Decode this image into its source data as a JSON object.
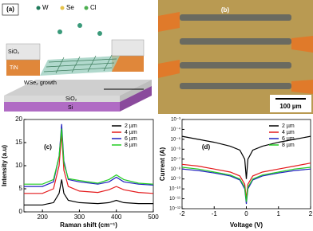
{
  "panels": [
    {
      "label": "(a)",
      "legend": [
        "W",
        "Se",
        "Cl"
      ],
      "layers": [
        "SiO₂",
        "TiN",
        "WSe₂ growth",
        "SiO₂",
        "Si"
      ]
    },
    {
      "label": "(b)",
      "scale_bar": "100 µm"
    }
  ],
  "chart_data": [
    {
      "type": "line",
      "panel": "(c)",
      "x_label": "Raman shift (cm⁻¹)",
      "y_label": "Intensity (a.u)",
      "x": [
        150,
        200,
        230,
        245,
        252,
        258,
        270,
        300,
        350,
        380,
        400,
        420,
        460,
        500
      ],
      "xlim": [
        150,
        500
      ],
      "xticks": [
        200,
        300,
        400,
        500
      ],
      "ylim": [
        0,
        20
      ],
      "yticks": [
        0,
        5,
        10,
        15,
        20
      ],
      "legend": "upper right",
      "series": [
        {
          "name": "2 µm",
          "color": "#000000",
          "values": [
            1.5,
            1.5,
            2,
            4,
            7,
            4,
            2.5,
            2,
            1.8,
            2,
            2.5,
            2,
            1.8,
            1.8
          ]
        },
        {
          "name": "4 µm",
          "color": "#e41a1c",
          "values": [
            4,
            4,
            5,
            10,
            17,
            9,
            5.5,
            4.5,
            4.2,
            4.8,
            5.5,
            4.8,
            4.2,
            4
          ]
        },
        {
          "name": "6 µm",
          "color": "#1f1fbf",
          "values": [
            5.5,
            5.5,
            6.5,
            12,
            19,
            11,
            7,
            6.5,
            6,
            6.5,
            7.5,
            6.5,
            6,
            5.8
          ]
        },
        {
          "name": "8 µm",
          "color": "#22cc22",
          "values": [
            6,
            6,
            7,
            12,
            18,
            10.5,
            7.2,
            6.8,
            6.2,
            7,
            8,
            7,
            6.2,
            6
          ]
        }
      ]
    },
    {
      "type": "line",
      "panel": "(d)",
      "x_label": "Voltage (V)",
      "y_label": "Current (A)",
      "log_y": true,
      "x": [
        -2,
        -1.5,
        -1,
        -0.5,
        -0.2,
        -0.05,
        0,
        0.05,
        0.2,
        0.5,
        1,
        1.5,
        2
      ],
      "xlim": [
        -2,
        2
      ],
      "xticks": [
        -2,
        -1,
        0,
        1,
        2
      ],
      "ylim": [
        1e-12,
        0.001
      ],
      "yticks": [
        {
          "value": 1e-12,
          "label": "10⁻¹²"
        },
        {
          "value": 1e-11,
          "label": "10⁻¹¹"
        },
        {
          "value": 1e-10,
          "label": "10⁻¹⁰"
        },
        {
          "value": 1e-09,
          "label": "10⁻⁹"
        },
        {
          "value": 1e-08,
          "label": "10⁻⁸"
        },
        {
          "value": 1e-07,
          "label": "10⁻⁷"
        },
        {
          "value": 1e-06,
          "label": "10⁻⁶"
        },
        {
          "value": 1e-05,
          "label": "10⁻⁵"
        },
        {
          "value": 0.0001,
          "label": "10⁻⁴"
        },
        {
          "value": 0.001,
          "label": "10⁻³"
        }
      ],
      "legend": "upper right",
      "series": [
        {
          "name": "2 µm",
          "color": "#000000",
          "values": [
            2e-05,
            1e-05,
            5e-06,
            2e-06,
            8e-07,
            1e-07,
            1e-09,
            1e-07,
            8e-07,
            2e-06,
            5e-06,
            1e-05,
            2e-05
          ]
        },
        {
          "name": "4 µm",
          "color": "#e41a1c",
          "values": [
            3e-08,
            2e-08,
            1e-08,
            5e-09,
            2e-09,
            3e-10,
            1e-11,
            3e-10,
            2e-09,
            5e-09,
            1e-08,
            2e-08,
            4e-08
          ]
        },
        {
          "name": "6 µm",
          "color": "#1f1fbf",
          "values": [
            1e-08,
            7e-09,
            4e-09,
            2e-09,
            8e-10,
            1e-10,
            3e-12,
            1e-10,
            8e-10,
            2e-09,
            4e-09,
            7e-09,
            1e-08
          ]
        },
        {
          "name": "8 µm",
          "color": "#22cc22",
          "values": [
            1.5e-08,
            1e-08,
            5e-09,
            2.5e-09,
            1e-09,
            1.5e-10,
            5e-12,
            1.5e-10,
            1e-09,
            2.5e-09,
            5e-09,
            1e-08,
            1.5e-08
          ]
        }
      ]
    }
  ]
}
